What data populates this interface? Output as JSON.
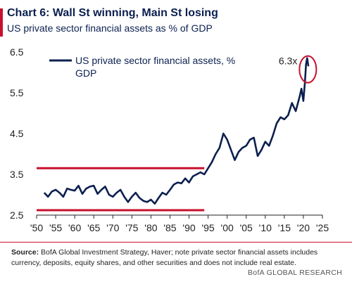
{
  "header": {
    "title": "Chart 6: Wall St winning, Main St losing",
    "subtitle": "US private sector financial assets as % of GDP"
  },
  "footer": {
    "source_label": "Source:",
    "source_text": "BofA Global Investment Strategy, Haver; note private sector financial assets includes currency, deposits, equity shares, and other securities and does not include real estate.",
    "brand": "BofA GLOBAL RESEARCH"
  },
  "colors": {
    "series": "#0b1f4f",
    "reference": "#c8102e",
    "axis": "#222222"
  },
  "chart_data": {
    "type": "line",
    "title": "Chart 6: Wall St winning, Main St losing",
    "subtitle": "US private sector financial assets as % of GDP",
    "xlabel": "",
    "ylabel": "",
    "xlim": [
      1950,
      2025
    ],
    "ylim": [
      2.5,
      6.5
    ],
    "x_ticks": [
      1950,
      1955,
      1960,
      1965,
      1970,
      1975,
      1980,
      1985,
      1990,
      1995,
      2000,
      2005,
      2010,
      2015,
      2020,
      2025
    ],
    "x_tick_labels": [
      "'50",
      "'55",
      "'60",
      "'65",
      "'70",
      "'75",
      "'80",
      "'85",
      "'90",
      "'95",
      "'00",
      "'05",
      "'10",
      "'15",
      "'20",
      "'25"
    ],
    "y_ticks": [
      2.5,
      3.5,
      4.5,
      5.5,
      6.5
    ],
    "y_tick_labels": [
      "2.5",
      "3.5",
      "4.5",
      "5.5",
      "6.5"
    ],
    "grid": false,
    "legend_position": "top-left",
    "series": [
      {
        "name": "US private sector financial assets, % GDP",
        "points": [
          [
            1952,
            3.05
          ],
          [
            1953,
            2.95
          ],
          [
            1954,
            3.08
          ],
          [
            1955,
            3.12
          ],
          [
            1956,
            3.05
          ],
          [
            1957,
            2.95
          ],
          [
            1958,
            3.15
          ],
          [
            1959,
            3.12
          ],
          [
            1960,
            3.1
          ],
          [
            1961,
            3.22
          ],
          [
            1962,
            3.02
          ],
          [
            1963,
            3.15
          ],
          [
            1964,
            3.2
          ],
          [
            1965,
            3.22
          ],
          [
            1966,
            3.02
          ],
          [
            1967,
            3.12
          ],
          [
            1968,
            3.2
          ],
          [
            1969,
            3.0
          ],
          [
            1970,
            2.95
          ],
          [
            1971,
            3.05
          ],
          [
            1972,
            3.12
          ],
          [
            1973,
            2.95
          ],
          [
            1974,
            2.82
          ],
          [
            1975,
            2.95
          ],
          [
            1976,
            3.05
          ],
          [
            1977,
            2.92
          ],
          [
            1978,
            2.85
          ],
          [
            1979,
            2.82
          ],
          [
            1980,
            2.88
          ],
          [
            1981,
            2.78
          ],
          [
            1982,
            2.92
          ],
          [
            1983,
            3.05
          ],
          [
            1984,
            3.0
          ],
          [
            1985,
            3.12
          ],
          [
            1986,
            3.25
          ],
          [
            1987,
            3.3
          ],
          [
            1988,
            3.28
          ],
          [
            1989,
            3.4
          ],
          [
            1990,
            3.3
          ],
          [
            1991,
            3.45
          ],
          [
            1992,
            3.5
          ],
          [
            1993,
            3.55
          ],
          [
            1994,
            3.5
          ],
          [
            1995,
            3.65
          ],
          [
            1996,
            3.8
          ],
          [
            1997,
            4.0
          ],
          [
            1998,
            4.15
          ],
          [
            1999,
            4.5
          ],
          [
            2000,
            4.35
          ],
          [
            2001,
            4.1
          ],
          [
            2002,
            3.85
          ],
          [
            2003,
            4.05
          ],
          [
            2004,
            4.15
          ],
          [
            2005,
            4.2
          ],
          [
            2006,
            4.35
          ],
          [
            2007,
            4.4
          ],
          [
            2008,
            3.95
          ],
          [
            2009,
            4.1
          ],
          [
            2010,
            4.3
          ],
          [
            2011,
            4.2
          ],
          [
            2012,
            4.45
          ],
          [
            2013,
            4.75
          ],
          [
            2014,
            4.9
          ],
          [
            2015,
            4.85
          ],
          [
            2016,
            4.95
          ],
          [
            2017,
            5.25
          ],
          [
            2018,
            5.05
          ],
          [
            2019,
            5.4
          ],
          [
            2019.5,
            5.6
          ],
          [
            2020.0,
            5.3
          ],
          [
            2020.4,
            5.75
          ],
          [
            2020.7,
            6.2
          ],
          [
            2021.0,
            6.35
          ],
          [
            2021.3,
            6.15
          ]
        ]
      }
    ],
    "reference_lines": [
      {
        "y": 3.65,
        "x_range": [
          1950,
          1994
        ]
      },
      {
        "y": 2.62,
        "x_range": [
          1950,
          1994
        ]
      }
    ],
    "annotations": [
      {
        "text": "6.3x",
        "x": 2021,
        "y": 6.3,
        "circled": true
      }
    ]
  }
}
